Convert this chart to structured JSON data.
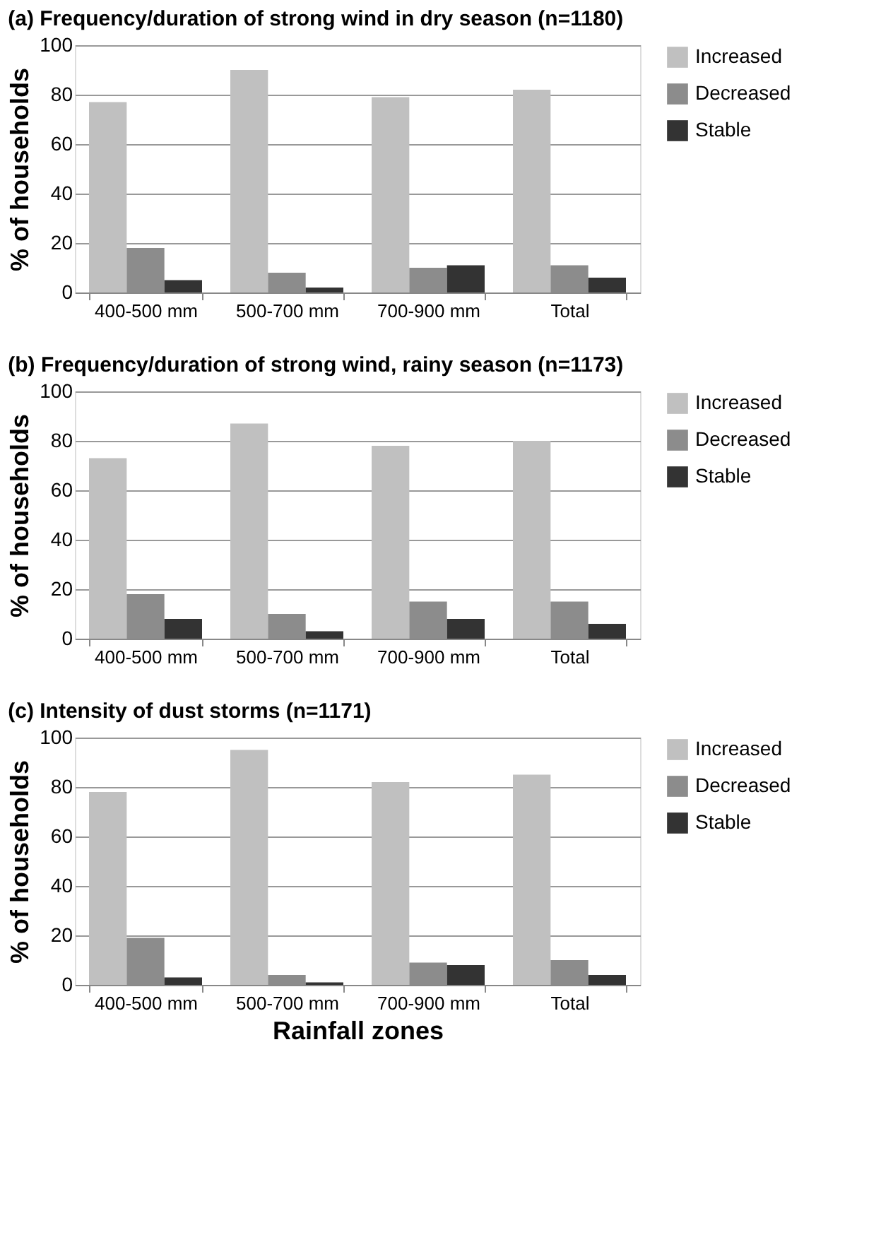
{
  "chart_data": [
    {
      "type": "bar",
      "title": "(a) Frequency/duration of strong wind in dry season (n=1180)",
      "ylabel": "% of households",
      "categories": [
        "400-500  mm",
        "500-700  mm",
        "700-900  mm",
        "Total"
      ],
      "series": [
        {
          "name": "Increased",
          "color": "#c0c0c0",
          "values": [
            77,
            90,
            79,
            82
          ]
        },
        {
          "name": "Decreased",
          "color": "#8c8c8c",
          "values": [
            18,
            8,
            10,
            11
          ]
        },
        {
          "name": "Stable",
          "color": "#333333",
          "values": [
            5,
            2,
            11,
            6
          ]
        }
      ],
      "ylim": [
        0,
        100
      ],
      "yticks": [
        0,
        20,
        40,
        60,
        80,
        100
      ],
      "grid": "y",
      "legend": "right"
    },
    {
      "type": "bar",
      "title": "(b) Frequency/duration of strong wind, rainy season (n=1173)",
      "ylabel": "% of households",
      "categories": [
        "400-500  mm",
        "500-700  mm",
        "700-900  mm",
        "Total"
      ],
      "series": [
        {
          "name": "Increased",
          "color": "#c0c0c0",
          "values": [
            73,
            87,
            78,
            80
          ]
        },
        {
          "name": "Decreased",
          "color": "#8c8c8c",
          "values": [
            18,
            10,
            15,
            15
          ]
        },
        {
          "name": "Stable",
          "color": "#333333",
          "values": [
            8,
            3,
            8,
            6
          ]
        }
      ],
      "ylim": [
        0,
        100
      ],
      "yticks": [
        0,
        20,
        40,
        60,
        80,
        100
      ],
      "grid": "y",
      "legend": "right"
    },
    {
      "type": "bar",
      "title": "(c) Intensity of dust storms (n=1171)",
      "ylabel": "% of households",
      "xlabel": "Rainfall zones",
      "categories": [
        "400-500  mm",
        "500-700  mm",
        "700-900  mm",
        "Total"
      ],
      "series": [
        {
          "name": "Increased",
          "color": "#c0c0c0",
          "values": [
            78,
            95,
            82,
            85
          ]
        },
        {
          "name": "Decreased",
          "color": "#8c8c8c",
          "values": [
            19,
            4,
            9,
            10
          ]
        },
        {
          "name": "Stable",
          "color": "#333333",
          "values": [
            3,
            1,
            8,
            4
          ]
        }
      ],
      "ylim": [
        0,
        100
      ],
      "yticks": [
        0,
        20,
        40,
        60,
        80,
        100
      ],
      "grid": "y",
      "legend": "right"
    }
  ]
}
